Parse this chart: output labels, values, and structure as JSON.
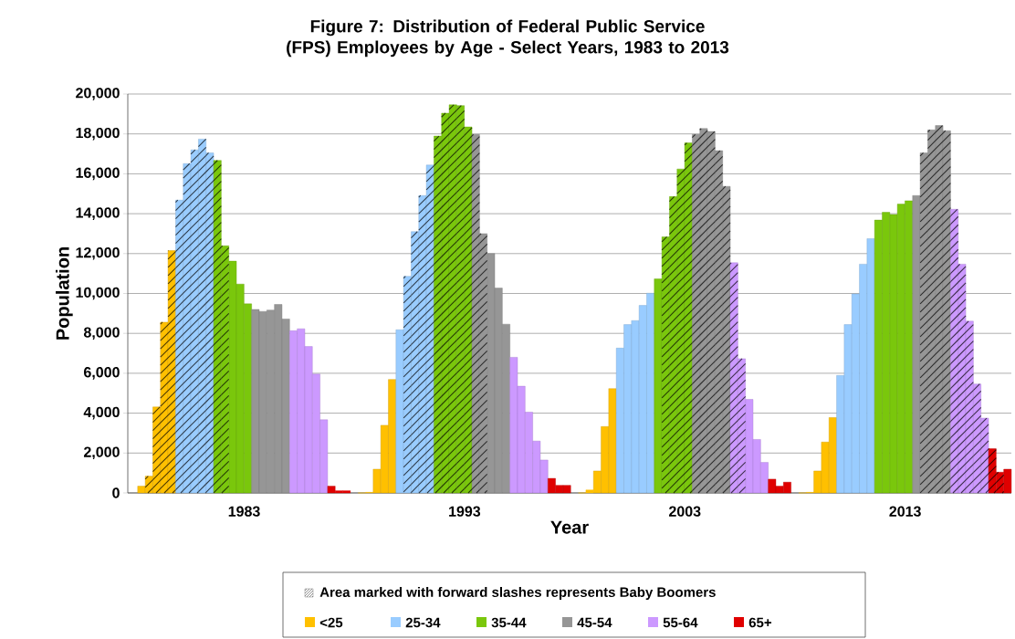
{
  "chart_data": {
    "type": "bar",
    "title": "Figure 7: Distribution of Federal Public Service (FPS) Employees by Age - Select Years, 1983 to 2013",
    "xlabel": "Year",
    "ylabel": "Population",
    "legend_title": "Area marked with forward slashes represents Baby Boomers",
    "categories": [
      null,
      null,
      null,
      null,
      null,
      null,
      null,
      null,
      null,
      null,
      null,
      null,
      null,
      null,
      null,
      "1983",
      null,
      null,
      null,
      null,
      null,
      null,
      null,
      null,
      null,
      null,
      null,
      null,
      null,
      null,
      null,
      null,
      null,
      null,
      null,
      null,
      null,
      null,
      null,
      null,
      null,
      null,
      null,
      null,
      "1993",
      null,
      null,
      null,
      null,
      null,
      null,
      null,
      null,
      null,
      null,
      null,
      null,
      null,
      null,
      null,
      null,
      null,
      null,
      null,
      null,
      null,
      null,
      null,
      null,
      null,
      null,
      null,
      null,
      "2003",
      null,
      null,
      null,
      null,
      null,
      null,
      null,
      null,
      null,
      null,
      null,
      null,
      null,
      null,
      null,
      null,
      null,
      null,
      null,
      null,
      null,
      null,
      null,
      null,
      null,
      null,
      null,
      null,
      "2013",
      null,
      null,
      null,
      null,
      null,
      null,
      null,
      null,
      null,
      null,
      null,
      null,
      null
    ],
    "ylim": [
      0,
      20000
    ],
    "yticks": [
      0,
      {
        "value": 2000,
        "label": "2,000"
      },
      {
        "value": 4000,
        "label": "4,000"
      },
      {
        "value": 6000,
        "label": "6,000"
      },
      {
        "value": 8000,
        "label": "8,000"
      },
      {
        "value": 10000,
        "label": "10,000"
      },
      {
        "value": 12000,
        "label": "12,000"
      },
      {
        "value": 14000,
        "label": "14,000"
      },
      {
        "value": 16000,
        "label": "16,000"
      },
      {
        "value": 18000,
        "label": "18,000"
      },
      {
        "value": 20000,
        "label": "20,000"
      }
    ],
    "grid": "y",
    "legend": "bottom",
    "series": [
      {
        "name": "<25",
        "color": "#ffc000",
        "values": [
          null,
          340,
          null,
          null,
          null,
          null,
          null,
          null,
          null,
          null,
          null,
          null,
          null,
          null,
          null,
          null,
          null,
          null,
          null,
          null,
          null,
          null,
          null,
          null,
          null,
          null,
          null,
          null,
          null,
          null,
          0,
          30,
          1190,
          3390,
          5690,
          null,
          null,
          null,
          null,
          null,
          null,
          null,
          null,
          null,
          null,
          null,
          null,
          null,
          null,
          null,
          null,
          null,
          null,
          null,
          null,
          null,
          null,
          null,
          null,
          0,
          150,
          1100,
          3330,
          5230,
          null,
          null,
          null,
          null,
          null,
          null,
          null,
          null,
          null,
          null,
          null,
          null,
          null,
          null,
          null,
          null,
          null,
          null,
          null,
          null,
          null,
          null,
          null,
          null,
          0,
          30,
          1100,
          2550,
          3780,
          null,
          null,
          null,
          null,
          null,
          null,
          null,
          null,
          null,
          null,
          null,
          null,
          null,
          null,
          null,
          null,
          null,
          null,
          null,
          null,
          null,
          null,
          null
        ]
      },
      {
        "color": "#ffc000",
        "values": [
          null,
          null,
          840,
          4310,
          8560,
          12150,
          null,
          null,
          null,
          null,
          null,
          null,
          null,
          null,
          null,
          null,
          null,
          null,
          null,
          null,
          null,
          null,
          null,
          null,
          null,
          null,
          null,
          null,
          null,
          null,
          null,
          null,
          null,
          null,
          null,
          null,
          null,
          null,
          null,
          null,
          null,
          null,
          null,
          null,
          null,
          null,
          null,
          null,
          null,
          null,
          null,
          null,
          null,
          null,
          null,
          null,
          null,
          null,
          null,
          null,
          null,
          null,
          null,
          null,
          null,
          null,
          null,
          null,
          null,
          null,
          null,
          null,
          null,
          null,
          null,
          null,
          null,
          null,
          null,
          null,
          null,
          null,
          null,
          null,
          null,
          null,
          null,
          null,
          null,
          null,
          null,
          null,
          null,
          null,
          null,
          null,
          null,
          null,
          null,
          null,
          null,
          null,
          null,
          null,
          null,
          null,
          null,
          null,
          null,
          null,
          null,
          null,
          null,
          null,
          null,
          null
        ]
      },
      {
        "name": "25-34",
        "color": "#99ccff",
        "values": [
          null,
          null,
          null,
          null,
          null,
          null,
          null,
          null,
          null,
          null,
          null,
          null,
          null,
          null,
          null,
          null,
          null,
          null,
          null,
          null,
          null,
          null,
          null,
          null,
          null,
          null,
          null,
          null,
          null,
          null,
          null,
          null,
          null,
          null,
          null,
          8180,
          null,
          null,
          null,
          null,
          null,
          null,
          null,
          null,
          null,
          null,
          null,
          null,
          null,
          null,
          null,
          null,
          null,
          null,
          null,
          null,
          null,
          null,
          null,
          null,
          null,
          null,
          null,
          null,
          7260,
          8440,
          8640,
          9400,
          10010,
          null,
          null,
          null,
          null,
          null,
          null,
          null,
          null,
          null,
          null,
          null,
          null,
          null,
          null,
          null,
          null,
          null,
          null,
          null,
          null,
          null,
          null,
          null,
          null,
          5890,
          8440,
          9980,
          11470,
          12750,
          null,
          null,
          null,
          null,
          null,
          null,
          null,
          null,
          null,
          null,
          null,
          null,
          null,
          null,
          null,
          null,
          null,
          null
        ]
      },
      {
        "color": "#99ccff",
        "values": [
          null,
          null,
          null,
          null,
          null,
          null,
          14680,
          16510,
          17200,
          17740,
          17050,
          null,
          null,
          null,
          null,
          null,
          null,
          null,
          null,
          null,
          null,
          null,
          null,
          null,
          null,
          null,
          null,
          null,
          null,
          null,
          null,
          null,
          null,
          null,
          null,
          null,
          10860,
          13100,
          14910,
          16440,
          null,
          null,
          null,
          null,
          null,
          null,
          null,
          null,
          null,
          null,
          null,
          null,
          null,
          null,
          null,
          null,
          null,
          null,
          null,
          null,
          null,
          null,
          null,
          null,
          null,
          null,
          null,
          null,
          null,
          null,
          null,
          null,
          null,
          null,
          null,
          null,
          null,
          null,
          null,
          null,
          null,
          null,
          null,
          null,
          null,
          null,
          null,
          null,
          null,
          null,
          null,
          null,
          null,
          null,
          null,
          null,
          null,
          null,
          null,
          null,
          null,
          null,
          null,
          null,
          null,
          null,
          null,
          null,
          null,
          null,
          null,
          null,
          null,
          null,
          null,
          null
        ]
      },
      {
        "name": "35-44",
        "color": "#7ac70c",
        "values": [
          null,
          null,
          null,
          null,
          null,
          null,
          null,
          null,
          null,
          null,
          null,
          null,
          null,
          11620,
          10470,
          9480,
          null,
          null,
          null,
          null,
          null,
          null,
          null,
          null,
          null,
          null,
          null,
          null,
          null,
          null,
          null,
          null,
          null,
          null,
          null,
          null,
          null,
          null,
          null,
          null,
          null,
          null,
          null,
          null,
          null,
          null,
          null,
          null,
          null,
          null,
          null,
          null,
          null,
          null,
          null,
          null,
          null,
          null,
          null,
          null,
          null,
          null,
          null,
          null,
          null,
          null,
          null,
          null,
          null,
          10730,
          null,
          null,
          null,
          null,
          null,
          null,
          null,
          null,
          null,
          null,
          null,
          null,
          null,
          null,
          null,
          null,
          null,
          null,
          null,
          null,
          null,
          null,
          null,
          null,
          null,
          null,
          null,
          null,
          13680,
          14070,
          13960,
          14480,
          14650,
          null,
          null,
          null,
          null,
          null,
          null,
          null,
          null,
          null,
          null,
          null,
          null,
          null
        ]
      },
      {
        "color": "#7ac70c",
        "values": [
          null,
          null,
          null,
          null,
          null,
          null,
          null,
          null,
          null,
          null,
          null,
          16670,
          12390,
          null,
          null,
          null,
          null,
          null,
          null,
          null,
          null,
          null,
          null,
          null,
          null,
          null,
          null,
          null,
          null,
          null,
          null,
          null,
          null,
          null,
          null,
          null,
          null,
          null,
          null,
          null,
          17890,
          19040,
          19460,
          19420,
          18350,
          null,
          null,
          null,
          null,
          null,
          null,
          null,
          null,
          null,
          null,
          null,
          null,
          null,
          null,
          null,
          null,
          null,
          null,
          null,
          null,
          null,
          null,
          null,
          null,
          null,
          12840,
          14860,
          16240,
          17550,
          null,
          null,
          null,
          null,
          null,
          null,
          null,
          null,
          null,
          null,
          null,
          null,
          null,
          null,
          null,
          null,
          null,
          null,
          null,
          null,
          null,
          null,
          null,
          null,
          null,
          null,
          null,
          null,
          null,
          null,
          null,
          null,
          null,
          null,
          null,
          null,
          null,
          null,
          null,
          null,
          null,
          null
        ]
      },
      {
        "name": "45-54",
        "color": "#969696",
        "values": [
          null,
          null,
          null,
          null,
          null,
          null,
          null,
          null,
          null,
          null,
          null,
          null,
          null,
          null,
          null,
          null,
          9200,
          9100,
          9170,
          9450,
          8720,
          null,
          null,
          null,
          null,
          null,
          null,
          null,
          null,
          null,
          null,
          null,
          null,
          null,
          null,
          null,
          null,
          null,
          null,
          null,
          null,
          null,
          null,
          null,
          null,
          null,
          null,
          12000,
          10270,
          8460,
          null,
          null,
          null,
          null,
          null,
          null,
          null,
          null,
          null,
          null,
          null,
          null,
          null,
          null,
          null,
          null,
          null,
          null,
          null,
          null,
          null,
          null,
          null,
          null,
          null,
          null,
          null,
          null,
          null,
          null,
          null,
          null,
          null,
          null,
          null,
          null,
          null,
          null,
          null,
          null,
          null,
          null,
          null,
          null,
          null,
          null,
          null,
          null,
          null,
          null,
          null,
          null,
          null,
          14910,
          null,
          null,
          null,
          null,
          null,
          null,
          null,
          null,
          null,
          null,
          null,
          null
        ]
      },
      {
        "color": "#969696",
        "values": [
          null,
          null,
          null,
          null,
          null,
          null,
          null,
          null,
          null,
          null,
          null,
          null,
          null,
          null,
          null,
          null,
          null,
          null,
          null,
          null,
          null,
          null,
          null,
          null,
          null,
          null,
          null,
          null,
          null,
          null,
          null,
          null,
          null,
          null,
          null,
          null,
          null,
          null,
          null,
          null,
          null,
          null,
          null,
          null,
          null,
          17970,
          13000,
          null,
          null,
          null,
          null,
          null,
          null,
          null,
          null,
          null,
          null,
          null,
          null,
          null,
          null,
          null,
          null,
          null,
          null,
          null,
          null,
          null,
          null,
          null,
          null,
          null,
          null,
          null,
          17970,
          18270,
          18120,
          17160,
          15370,
          null,
          null,
          null,
          null,
          null,
          null,
          null,
          null,
          null,
          null,
          null,
          null,
          null,
          null,
          null,
          null,
          null,
          null,
          null,
          null,
          null,
          null,
          null,
          null,
          null,
          17050,
          18200,
          18420,
          18160,
          null,
          null,
          null,
          null,
          null,
          null,
          null,
          null
        ]
      },
      {
        "name": "55-64",
        "color": "#cc99ff",
        "values": [
          null,
          null,
          null,
          null,
          null,
          null,
          null,
          null,
          null,
          null,
          null,
          null,
          null,
          null,
          null,
          null,
          null,
          null,
          null,
          null,
          null,
          8130,
          8230,
          7340,
          5960,
          3670,
          null,
          null,
          null,
          null,
          null,
          null,
          null,
          null,
          null,
          null,
          null,
          null,
          null,
          null,
          null,
          null,
          null,
          null,
          null,
          null,
          null,
          null,
          null,
          null,
          6800,
          5350,
          4050,
          2600,
          1650,
          null,
          null,
          null,
          null,
          null,
          null,
          null,
          null,
          null,
          null,
          null,
          null,
          null,
          null,
          null,
          null,
          null,
          null,
          null,
          null,
          null,
          null,
          null,
          null,
          null,
          null,
          4690,
          2680,
          1530,
          null,
          null,
          null,
          null,
          null,
          null,
          null,
          null,
          null,
          null,
          null,
          null,
          null,
          null,
          null,
          null,
          null,
          null,
          null,
          null,
          null,
          null,
          null,
          null,
          null,
          null,
          null,
          null,
          null,
          null,
          null,
          null
        ]
      },
      {
        "color": "#cc99ff",
        "values": [
          null,
          null,
          null,
          null,
          null,
          null,
          null,
          null,
          null,
          null,
          null,
          null,
          null,
          null,
          null,
          null,
          null,
          null,
          null,
          null,
          null,
          null,
          null,
          null,
          null,
          null,
          null,
          null,
          null,
          null,
          null,
          null,
          null,
          null,
          null,
          null,
          null,
          null,
          null,
          null,
          null,
          null,
          null,
          null,
          null,
          null,
          null,
          null,
          null,
          null,
          null,
          null,
          null,
          null,
          null,
          null,
          null,
          null,
          null,
          null,
          null,
          null,
          null,
          null,
          null,
          null,
          null,
          null,
          null,
          null,
          null,
          null,
          null,
          null,
          null,
          null,
          null,
          null,
          null,
          11540,
          6730,
          null,
          null,
          null,
          null,
          null,
          null,
          null,
          null,
          null,
          null,
          null,
          null,
          null,
          null,
          null,
          null,
          null,
          null,
          null,
          null,
          null,
          null,
          null,
          null,
          null,
          null,
          null,
          14220,
          11470,
          8610,
          5460,
          3750,
          null,
          null,
          null
        ]
      },
      {
        "name": "65+",
        "color": "#e00000",
        "values": [
          null,
          null,
          null,
          null,
          null,
          null,
          null,
          null,
          null,
          null,
          null,
          null,
          null,
          null,
          null,
          null,
          null,
          null,
          null,
          null,
          null,
          null,
          null,
          null,
          null,
          null,
          340,
          110,
          110,
          null,
          null,
          null,
          null,
          null,
          null,
          null,
          null,
          null,
          null,
          null,
          null,
          null,
          null,
          null,
          null,
          null,
          null,
          null,
          null,
          null,
          null,
          null,
          null,
          null,
          null,
          730,
          380,
          380,
          null,
          null,
          null,
          null,
          null,
          null,
          null,
          null,
          null,
          null,
          null,
          null,
          null,
          null,
          null,
          null,
          null,
          null,
          null,
          null,
          null,
          null,
          null,
          null,
          null,
          null,
          690,
          340,
          540,
          null,
          null,
          null,
          null,
          null,
          null,
          null,
          null,
          null,
          null,
          null,
          null,
          null,
          null,
          null,
          null,
          null,
          null,
          null,
          null,
          null,
          null,
          null,
          null,
          null,
          null,
          null,
          null,
          1190
        ]
      },
      {
        "color": "#e00000",
        "values": [
          null,
          null,
          null,
          null,
          null,
          null,
          null,
          null,
          null,
          null,
          null,
          null,
          null,
          null,
          null,
          null,
          null,
          null,
          null,
          null,
          null,
          null,
          null,
          null,
          null,
          null,
          null,
          null,
          null,
          null,
          null,
          null,
          null,
          null,
          null,
          null,
          null,
          null,
          null,
          null,
          null,
          null,
          null,
          null,
          null,
          null,
          null,
          null,
          null,
          null,
          null,
          null,
          null,
          null,
          null,
          null,
          null,
          null,
          null,
          null,
          null,
          null,
          null,
          null,
          null,
          null,
          null,
          null,
          null,
          null,
          null,
          null,
          null,
          null,
          null,
          null,
          null,
          null,
          null,
          null,
          null,
          null,
          null,
          null,
          null,
          null,
          null,
          null,
          null,
          null,
          null,
          null,
          null,
          null,
          null,
          null,
          null,
          null,
          null,
          null,
          null,
          null,
          null,
          null,
          null,
          null,
          null,
          null,
          null,
          null,
          null,
          null,
          null,
          2220,
          1040,
          null
        ]
      }
    ]
  }
}
